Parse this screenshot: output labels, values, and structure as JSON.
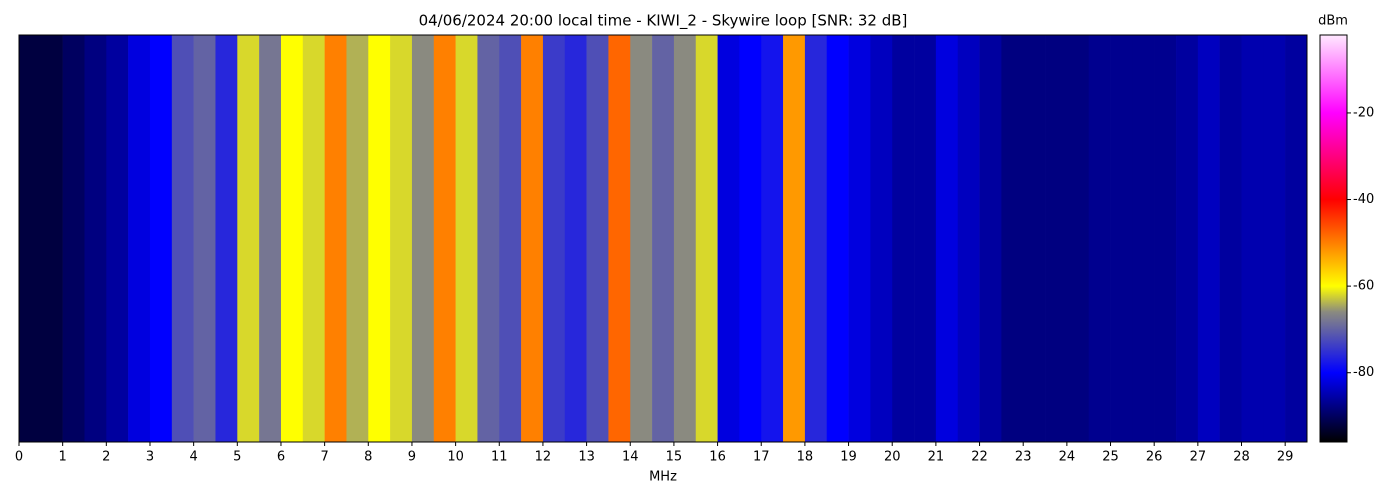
{
  "chart_data": {
    "type": "heatmap",
    "title": "04/06/2024 20:00 local time - KIWI_2 - Skywire loop [SNR: 32 dB]",
    "xlabel": "MHz",
    "colorbar_label": "dBm",
    "x_edges": [
      0,
      0.5,
      1,
      1.5,
      2,
      2.5,
      3,
      3.5,
      4,
      4.5,
      5,
      5.5,
      6,
      6.5,
      7,
      7.5,
      8,
      8.5,
      9,
      9.5,
      10,
      10.5,
      11,
      11.5,
      12,
      12.5,
      13,
      13.5,
      14,
      14.5,
      15,
      15.5,
      16,
      16.5,
      17,
      17.5,
      18,
      18.5,
      19,
      19.5,
      20,
      20.5,
      21,
      21.5,
      22,
      22.5,
      23,
      23.5,
      24,
      24.5,
      25,
      25.5,
      26,
      26.5,
      27,
      27.5,
      28,
      28.5,
      29,
      29.5
    ],
    "values": [
      -92,
      -92,
      -90,
      -88,
      -86,
      -82,
      -80,
      -72,
      -70,
      -76,
      -62,
      -68,
      -60,
      -62,
      -50,
      -64,
      -60,
      -62,
      -66,
      -50,
      -62,
      -70,
      -72,
      -50,
      -74,
      -76,
      -72,
      -48,
      -66,
      -70,
      -66,
      -62,
      -82,
      -80,
      -78,
      -52,
      -76,
      -80,
      -82,
      -84,
      -86,
      -86,
      -82,
      -84,
      -86,
      -88,
      -88,
      -88,
      -88,
      -87,
      -87,
      -87,
      -87,
      -86,
      -84,
      -86,
      -85,
      -85,
      -86
    ],
    "xlim": [
      0,
      29.5
    ],
    "xticks": [
      0,
      1,
      2,
      3,
      4,
      5,
      6,
      7,
      8,
      9,
      10,
      11,
      12,
      13,
      14,
      15,
      16,
      17,
      18,
      19,
      20,
      21,
      22,
      23,
      24,
      25,
      26,
      27,
      28,
      29
    ],
    "zlim": [
      -96,
      -2
    ],
    "zticks": [
      -20,
      -40,
      -60,
      -80
    ],
    "colormap": [
      {
        "value": -96,
        "color": "#000000"
      },
      {
        "value": -80,
        "color": "#0000ff"
      },
      {
        "value": -66,
        "color": "#8a8a80"
      },
      {
        "value": -60,
        "color": "#ffff00"
      },
      {
        "value": -40,
        "color": "#ff0000"
      },
      {
        "value": -20,
        "color": "#ff00ff"
      },
      {
        "value": -2,
        "color": "#ffe8ff"
      }
    ]
  }
}
